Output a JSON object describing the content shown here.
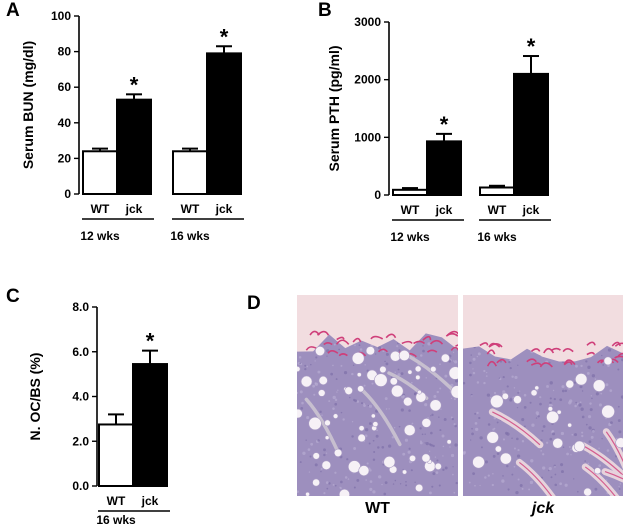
{
  "chart_data": [
    {
      "panel_letter": "A",
      "type": "bar",
      "ylabel": "Serum BUN (mg/dl)",
      "ylim": [
        0,
        100
      ],
      "yticks": [
        "0",
        "20",
        "40",
        "60",
        "80",
        "100"
      ],
      "genotype_labels": [
        "WT",
        "jck"
      ],
      "groups": [
        {
          "age": "12 wks",
          "values": [
            24,
            53
          ],
          "errors": [
            1.5,
            3
          ],
          "significant": [
            false,
            true
          ]
        },
        {
          "age": "16 wks",
          "values": [
            24,
            79
          ],
          "errors": [
            1.5,
            4
          ],
          "significant": [
            false,
            true
          ]
        }
      ],
      "significance_marker": "*",
      "fill_colors": [
        "#ffffff",
        "#000000"
      ]
    },
    {
      "panel_letter": "B",
      "type": "bar",
      "ylabel": "Serum PTH (pg/ml)",
      "ylim": [
        0,
        3000
      ],
      "yticks": [
        "0",
        "1000",
        "2000",
        "3000"
      ],
      "genotype_labels": [
        "WT",
        "jck"
      ],
      "groups": [
        {
          "age": "12 wks",
          "values": [
            90,
            930
          ],
          "errors": [
            30,
            130
          ],
          "significant": [
            false,
            true
          ]
        },
        {
          "age": "16 wks",
          "values": [
            130,
            2100
          ],
          "errors": [
            30,
            310
          ],
          "significant": [
            false,
            true
          ]
        }
      ],
      "significance_marker": "*",
      "fill_colors": [
        "#ffffff",
        "#000000"
      ]
    },
    {
      "panel_letter": "C",
      "type": "bar",
      "ylabel": "N. OC/BS (%)",
      "ylim": [
        0,
        8
      ],
      "yticks": [
        "0.0",
        "2.0",
        "4.0",
        "6.0",
        "8.0"
      ],
      "genotype_labels": [
        "WT",
        "jck"
      ],
      "groups": [
        {
          "age": "16 wks",
          "values": [
            2.75,
            5.45
          ],
          "errors": [
            0.45,
            0.6
          ],
          "significant": [
            false,
            true
          ]
        }
      ],
      "significance_marker": "*",
      "fill_colors": [
        "#ffffff",
        "#000000"
      ]
    }
  ],
  "histology": {
    "panel_letter": "D",
    "image_labels": [
      "WT",
      "jck"
    ],
    "stain_colors": {
      "marrow": "#9d8fbe",
      "bone": "#f2dde0",
      "oc_stain": "#cf3f7a",
      "fat": "#f6f1f6"
    }
  }
}
